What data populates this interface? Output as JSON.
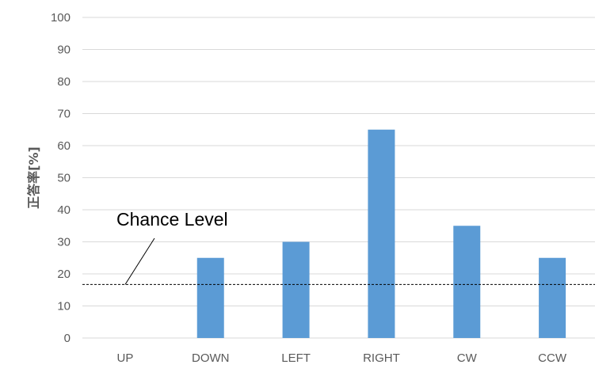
{
  "chart_data": {
    "type": "bar",
    "title": "",
    "xlabel": "",
    "ylabel": "正答率[%]",
    "ylim": [
      0,
      100
    ],
    "yticks": [
      0,
      10,
      20,
      30,
      40,
      50,
      60,
      70,
      80,
      90,
      100
    ],
    "categories": [
      "UP",
      "DOWN",
      "LEFT",
      "RIGHT",
      "CW",
      "CCW"
    ],
    "values": [
      0,
      25,
      30,
      65,
      35,
      25
    ],
    "bar_color": "#5b9bd5",
    "grid": true,
    "legend": "none",
    "reference_line": {
      "label": "Chance Level",
      "value": 16.7,
      "style": "dashed"
    }
  }
}
